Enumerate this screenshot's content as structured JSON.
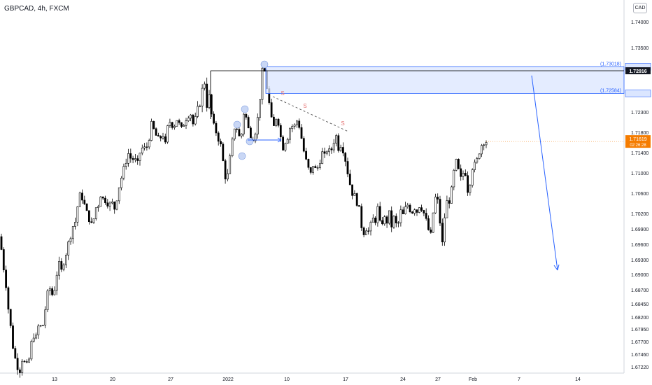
{
  "header": {
    "symbol_line": "GBPCAD, 4h, FXCM",
    "currency": "CAD"
  },
  "colors": {
    "up_candle": "#26a69a",
    "down_candle": "#ef5350",
    "candle_body_up": "#ffffff",
    "candle_body_down": "#000000",
    "zone_fill": "#dbe6ff",
    "zone_border": "#2962ff",
    "arrow": "#2962ff",
    "price_tag_current": "#f57c00",
    "marker_fill": "#c9d7f5",
    "dashed_line": "#555555",
    "supply_label": "#e57373"
  },
  "chart_data": {
    "type": "candlestick",
    "title": "GBPCAD, 4h, FXCM",
    "y_axis": {
      "ylim": [
        1.6705,
        1.7438
      ],
      "tick_labels": [
        "1.74000",
        "1.73500",
        "1.72900",
        "1.72600",
        "1.72300",
        "1.71800",
        "1.71400",
        "1.71000",
        "1.70600",
        "1.70200",
        "1.69900",
        "1.69600",
        "1.69300",
        "1.69000",
        "1.68700",
        "1.68450",
        "1.68200",
        "1.67950",
        "1.67700",
        "1.67460",
        "1.67220"
      ],
      "unit": "CAD"
    },
    "x_axis": {
      "tick_labels": [
        "13",
        "20",
        "27",
        "2022",
        "10",
        "17",
        "24",
        "27",
        "Feb",
        "7",
        "14"
      ]
    },
    "price_labels": {
      "zone_top": "(1.73018)",
      "zone_bottom": "(1.72584)",
      "level_line": "1.72916",
      "current_price": "1.71619",
      "countdown": "02:26:28"
    },
    "zone": {
      "top": 1.73018,
      "bottom": 1.72584
    },
    "level": 1.72916,
    "current": 1.71619,
    "supply_markers": [
      "S",
      "S",
      "S"
    ],
    "close_path": [
      [
        0,
        1.6975
      ],
      [
        4,
        1.6925
      ],
      [
        8,
        1.689
      ],
      [
        12,
        1.6835
      ],
      [
        16,
        1.679
      ],
      [
        20,
        1.6745
      ],
      [
        24,
        1.6728
      ],
      [
        28,
        1.6715
      ],
      [
        32,
        1.674
      ],
      [
        36,
        1.6725
      ],
      [
        40,
        1.672
      ],
      [
        44,
        1.676
      ],
      [
        48,
        1.6785
      ],
      [
        52,
        1.6775
      ],
      [
        56,
        1.681
      ],
      [
        60,
        1.679
      ],
      [
        64,
        1.683
      ],
      [
        68,
        1.686
      ],
      [
        72,
        1.6875
      ],
      [
        76,
        1.6855
      ],
      [
        80,
        1.6895
      ],
      [
        84,
        1.692
      ],
      [
        88,
        1.6905
      ],
      [
        92,
        1.6935
      ],
      [
        96,
        1.695
      ],
      [
        100,
        1.6975
      ],
      [
        104,
        1.6995
      ],
      [
        108,
        1.7005
      ],
      [
        112,
        1.7045
      ],
      [
        116,
        1.706
      ],
      [
        120,
        1.704
      ],
      [
        124,
        1.702
      ],
      [
        128,
        1.701
      ],
      [
        132,
        1.699
      ],
      [
        136,
        1.703
      ],
      [
        140,
        1.7035
      ],
      [
        144,
        1.706
      ],
      [
        148,
        1.7045
      ],
      [
        152,
        1.705
      ],
      [
        156,
        1.7035
      ],
      [
        160,
        1.704
      ],
      [
        164,
        1.703
      ],
      [
        168,
        1.706
      ],
      [
        172,
        1.7085
      ],
      [
        176,
        1.71
      ],
      [
        180,
        1.7125
      ],
      [
        184,
        1.714
      ],
      [
        188,
        1.7125
      ],
      [
        192,
        1.713
      ],
      [
        196,
        1.711
      ],
      [
        200,
        1.714
      ],
      [
        204,
        1.715
      ],
      [
        208,
        1.7145
      ],
      [
        212,
        1.716
      ],
      [
        216,
        1.72
      ],
      [
        220,
        1.7185
      ],
      [
        224,
        1.717
      ],
      [
        228,
        1.716
      ],
      [
        232,
        1.7185
      ],
      [
        236,
        1.715
      ],
      [
        240,
        1.7195
      ],
      [
        244,
        1.721
      ],
      [
        248,
        1.719
      ],
      [
        252,
        1.7215
      ],
      [
        256,
        1.72
      ],
      [
        260,
        1.7185
      ],
      [
        264,
        1.721
      ],
      [
        268,
        1.722
      ],
      [
        272,
        1.723
      ],
      [
        276,
        1.72
      ],
      [
        280,
        1.7215
      ],
      [
        284,
        1.724
      ],
      [
        288,
        1.7255
      ],
      [
        292,
        1.728
      ],
      [
        296,
        1.724
      ],
      [
        300,
        1.7255
      ],
      [
        304,
        1.72
      ],
      [
        308,
        1.7185
      ],
      [
        312,
        1.717
      ],
      [
        316,
        1.715
      ],
      [
        320,
        1.711
      ],
      [
        324,
        1.708
      ],
      [
        328,
        1.712
      ],
      [
        332,
        1.716
      ],
      [
        336,
        1.72
      ],
      [
        340,
        1.7185
      ],
      [
        344,
        1.7155
      ],
      [
        348,
        1.723
      ],
      [
        352,
        1.7215
      ],
      [
        356,
        1.718
      ],
      [
        360,
        1.717
      ],
      [
        364,
        1.7175
      ],
      [
        368,
        1.721
      ],
      [
        372,
        1.726
      ],
      [
        376,
        1.73
      ],
      [
        380,
        1.728
      ],
      [
        384,
        1.725
      ],
      [
        388,
        1.721
      ],
      [
        392,
        1.719
      ],
      [
        396,
        1.723
      ],
      [
        400,
        1.718
      ],
      [
        404,
        1.715
      ],
      [
        408,
        1.7165
      ],
      [
        412,
        1.7175
      ],
      [
        416,
        1.72
      ],
      [
        420,
        1.719
      ],
      [
        424,
        1.721
      ],
      [
        428,
        1.7195
      ],
      [
        432,
        1.716
      ],
      [
        436,
        1.713
      ],
      [
        440,
        1.711
      ],
      [
        444,
        1.7095
      ],
      [
        448,
        1.712
      ],
      [
        452,
        1.71
      ],
      [
        456,
        1.712
      ],
      [
        460,
        1.714
      ],
      [
        464,
        1.713
      ],
      [
        468,
        1.715
      ],
      [
        472,
        1.7135
      ],
      [
        476,
        1.716
      ],
      [
        480,
        1.7175
      ],
      [
        484,
        1.715
      ],
      [
        488,
        1.716
      ],
      [
        492,
        1.714
      ],
      [
        496,
        1.711
      ],
      [
        500,
        1.708
      ],
      [
        504,
        1.706
      ],
      [
        508,
        1.705
      ],
      [
        512,
        1.704
      ],
      [
        516,
        1.7
      ],
      [
        520,
        1.6985
      ],
      [
        524,
        1.6995
      ],
      [
        528,
        1.698
      ],
      [
        532,
        1.701
      ],
      [
        536,
        1.7005
      ],
      [
        540,
        1.703
      ],
      [
        544,
        1.699
      ],
      [
        548,
        1.7015
      ],
      [
        552,
        1.7
      ],
      [
        556,
        1.702
      ],
      [
        560,
        1.6995
      ],
      [
        564,
        1.7015
      ],
      [
        568,
        1.6985
      ],
      [
        572,
        1.7025
      ],
      [
        576,
        1.7015
      ],
      [
        580,
        1.703
      ],
      [
        584,
        1.704
      ],
      [
        588,
        1.702
      ],
      [
        592,
        1.7035
      ],
      [
        596,
        1.7025
      ],
      [
        600,
        1.704
      ],
      [
        604,
        1.703
      ],
      [
        608,
        1.701
      ],
      [
        612,
        1.699
      ],
      [
        616,
        1.6975
      ],
      [
        620,
        1.7035
      ],
      [
        624,
        1.706
      ],
      [
        628,
        1.702
      ],
      [
        632,
        1.6955
      ],
      [
        636,
        1.702
      ],
      [
        640,
        1.705
      ],
      [
        644,
        1.7045
      ],
      [
        648,
        1.7095
      ],
      [
        652,
        1.712
      ],
      [
        656,
        1.71
      ],
      [
        660,
        1.708
      ],
      [
        664,
        1.712
      ],
      [
        668,
        1.7065
      ],
      [
        672,
        1.7085
      ],
      [
        676,
        1.712
      ],
      [
        680,
        1.711
      ],
      [
        684,
        1.714
      ],
      [
        688,
        1.7155
      ],
      [
        692,
        1.7165
      ],
      [
        696,
        1.7162
      ]
    ],
    "grid": false,
    "legend": "none"
  }
}
